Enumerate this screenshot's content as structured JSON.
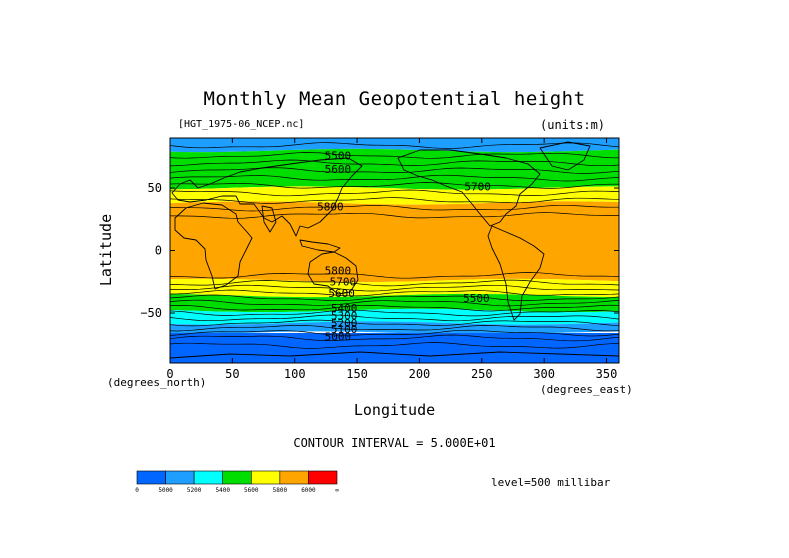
{
  "chart_data": {
    "type": "heatmap",
    "title": "Monthly Mean Geopotential height",
    "source_label": "[HGT_1975-06_NCEP.nc]",
    "units_label": "(units:m)",
    "xlabel": "Longitude",
    "ylabel": "Latitude",
    "x_unit_label": "(degrees_east)",
    "y_unit_label": "(degrees_north)",
    "xlim": [
      0,
      360
    ],
    "ylim": [
      -90,
      90
    ],
    "x_ticks": [
      "0",
      "50",
      "100",
      "150",
      "200",
      "250",
      "300",
      "350"
    ],
    "y_ticks": [
      "50",
      "0",
      "−50"
    ],
    "x_tick_values": [
      0,
      50,
      100,
      150,
      200,
      250,
      300,
      350
    ],
    "y_tick_values": [
      50,
      0,
      -50
    ],
    "contour_interval_text": "CONTOUR INTERVAL = 5.000E+01",
    "level_text": "level=500 millibar",
    "contour_labels": [
      {
        "text": "5500",
        "lon": 124,
        "lat": 73
      },
      {
        "text": "5600",
        "lon": 124,
        "lat": 62
      },
      {
        "text": "5700",
        "lon": 236,
        "lat": 48
      },
      {
        "text": "5800",
        "lon": 118,
        "lat": 32
      },
      {
        "text": "5800",
        "lon": 124,
        "lat": -19
      },
      {
        "text": "5700",
        "lon": 128,
        "lat": -28
      },
      {
        "text": "5600",
        "lon": 127,
        "lat": -37
      },
      {
        "text": "5500",
        "lon": 235,
        "lat": -41
      },
      {
        "text": "5400",
        "lon": 129,
        "lat": -49
      },
      {
        "text": "5300",
        "lon": 129,
        "lat": -55
      },
      {
        "text": "5200",
        "lon": 129,
        "lat": -61
      },
      {
        "text": "5100",
        "lon": 129,
        "lat": -66
      },
      {
        "text": "5000",
        "lon": 124,
        "lat": -72
      }
    ],
    "colorbar": {
      "labels": [
        "0",
        "5000",
        "5200",
        "5400",
        "5600",
        "5800",
        "6000",
        "∞"
      ],
      "colors": [
        "#0066ff",
        "#1e9fff",
        "#00ffff",
        "#00dd00",
        "#ffff00",
        "#ffa500",
        "#ff0000"
      ]
    },
    "latitude_bands": [
      {
        "lat_from": 90,
        "lat_to": 80,
        "color": "#1e9fff"
      },
      {
        "lat_from": 80,
        "lat_to": 50,
        "color": "#00dd00"
      },
      {
        "lat_from": 50,
        "lat_to": 38,
        "color": "#ffff00"
      },
      {
        "lat_from": 38,
        "lat_to": -24,
        "color": "#ffa500"
      },
      {
        "lat_from": -24,
        "lat_to": -36,
        "color": "#ffff00"
      },
      {
        "lat_from": -36,
        "lat_to": -48,
        "color": "#00dd00"
      },
      {
        "lat_from": -48,
        "lat_to": -58,
        "color": "#00ffff"
      },
      {
        "lat_from": -58,
        "lat_to": -66,
        "color": "#1e9fff"
      },
      {
        "lat_from": -66,
        "lat_to": -90,
        "color": "#0066ff"
      }
    ]
  }
}
